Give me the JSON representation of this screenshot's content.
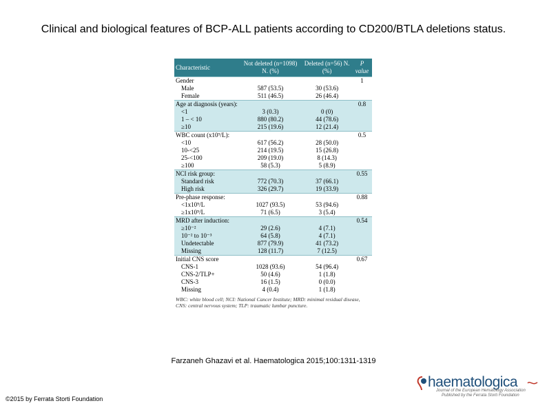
{
  "title": "Clinical and biological features of BCP-ALL patients according to CD200/BTLA deletions status.",
  "table": {
    "headers": {
      "characteristic": "Characteristic",
      "not_deleted": "Not deleted (n=1098) N. (%)",
      "deleted": "Deleted (n=56) N. (%)",
      "pvalue": "P value"
    },
    "groups": [
      {
        "label": "Gender",
        "p": "1",
        "rows": [
          {
            "label": "Male",
            "nd": "587 (53.5)",
            "d": "30 (53.6)"
          },
          {
            "label": "Female",
            "nd": "511 (46.5)",
            "d": "26 (46.4)"
          }
        ]
      },
      {
        "label": "Age at diagnosis (years):",
        "p": "0.8",
        "rows": [
          {
            "label": "<1",
            "nd": "3 (0.3)",
            "d": "0 (0)"
          },
          {
            "label": "1 – < 10",
            "nd": "880 (80.2)",
            "d": "44 (78.6)"
          },
          {
            "label": "≥10",
            "nd": "215 (19.6)",
            "d": "12 (21.4)"
          }
        ]
      },
      {
        "label": "WBC count (x10⁹/L):",
        "p": "0.5",
        "rows": [
          {
            "label": "<10",
            "nd": "617 (56.2)",
            "d": "28 (50.0)"
          },
          {
            "label": "10-<25",
            "nd": "214 (19.5)",
            "d": "15 (26.8)"
          },
          {
            "label": "25-<100",
            "nd": "209 (19.0)",
            "d": "8 (14.3)"
          },
          {
            "label": "≥100",
            "nd": "58 (5.3)",
            "d": "5 (8.9)"
          }
        ]
      },
      {
        "label": "NCI risk group:",
        "p": "0.55",
        "rows": [
          {
            "label": "Standard risk",
            "nd": "772 (70.3)",
            "d": "37 (66.1)"
          },
          {
            "label": "High risk",
            "nd": "326 (29.7)",
            "d": "19 (33.9)"
          }
        ]
      },
      {
        "label": "Pre-phase response:",
        "p": "0.88",
        "rows": [
          {
            "label": "<1x10⁹/L",
            "nd": "1027 (93.5)",
            "d": "53 (94.6)"
          },
          {
            "label": "≥1x10⁹/L",
            "nd": "71 (6.5)",
            "d": "3 (5.4)"
          }
        ]
      },
      {
        "label": "MRD after induction:",
        "p": "0.54",
        "rows": [
          {
            "label": "≥10⁻²",
            "nd": "29 (2.6)",
            "d": "4 (7.1)"
          },
          {
            "label": "10⁻² to 10⁻³",
            "nd": "64 (5.8)",
            "d": "4 (7.1)"
          },
          {
            "label": "Undetectable",
            "nd": "877 (79.9)",
            "d": "41 (73.2)"
          },
          {
            "label": "Missing",
            "nd": "128 (11.7)",
            "d": "7 (12.5)"
          }
        ]
      },
      {
        "label": "Initial CNS score",
        "p": "0.67",
        "rows": [
          {
            "label": "CNS-1",
            "nd": "1028 (93.6)",
            "d": "54 (96.4)"
          },
          {
            "label": "CNS-2/TLP+",
            "nd": "50 (4.6)",
            "d": "1 (1.8)"
          },
          {
            "label": "CNS-3",
            "nd": "16 (1.5)",
            "d": "0 (0.0)"
          },
          {
            "label": "Missing",
            "nd": "4 (0.4)",
            "d": "1 (1.8)"
          }
        ]
      }
    ],
    "footnote": "WBC: white blood cell; NCI: National Cancer Institute; MRD: minimal residual disease, CNS: central nervous system; TLP: traumatic lumbar puncture."
  },
  "citation": "Farzaneh Ghazavi et al. Haematologica 2015;100:1311-1319",
  "copyright": "©2015 by Ferrata Storti Foundation",
  "logo": {
    "name": "haematologica",
    "line1": "Journal of the European Hematology Association",
    "line2": "Published by the Ferrata Storti Foundation",
    "color": "#1f4f7a",
    "accent": "#c0392b"
  },
  "colors": {
    "header_bg": "#2f7d8b",
    "band_bg": "#cde8ec"
  }
}
